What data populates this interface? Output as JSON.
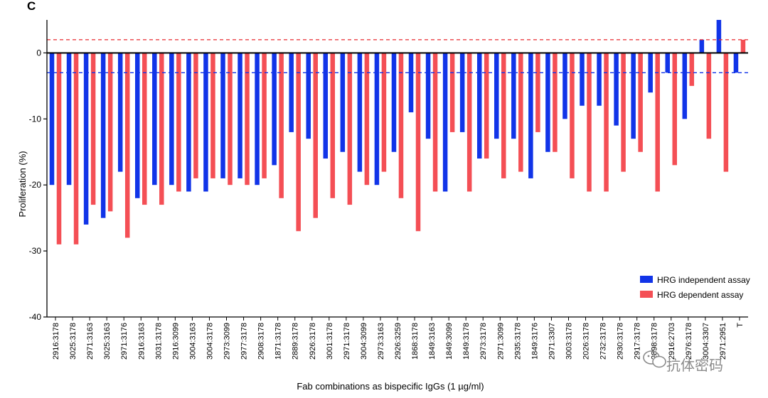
{
  "panel_label": "C",
  "watermark": {
    "text": "抗体密码",
    "icon": "wechat-icon"
  },
  "colors": {
    "independent": "#1134e8",
    "dependent": "#f44f55",
    "upper_threshold": "#e8282f",
    "lower_threshold": "#1134e8",
    "axis": "#000000"
  },
  "chart_data": {
    "type": "bar",
    "title": "",
    "xlabel": "Fab combinations as bispecific IgGs (1 µg/ml)",
    "ylabel": "Proliferation (%)",
    "ylim": [
      -40,
      5
    ],
    "yticks": [
      0,
      -10,
      -20,
      -30,
      -40
    ],
    "grid": false,
    "legend_position": "bottom-right",
    "categories": [
      "2916:3178",
      "3025:3178",
      "2971:3163",
      "3025:3163",
      "2971:3176",
      "2916:3163",
      "3031:3178",
      "2916:3099",
      "3004:3163",
      "3004:3178",
      "2973:3099",
      "2977:3178",
      "2908:3178",
      "1871:3178",
      "2889:3178",
      "2926:3178",
      "3001:3178",
      "2971:3178",
      "3004:3099",
      "2973:3163",
      "2926:3259",
      "1868:3178",
      "1849:3163",
      "1849:3099",
      "1849:3178",
      "2973:3178",
      "2971:3099",
      "2935:3178",
      "1849:3176",
      "2971:3307",
      "3003:3178",
      "2026:3178",
      "2732:3178",
      "2930:3178",
      "2917:3178",
      "2898:3178",
      "2916:2703",
      "2976:3178",
      "3004:3307",
      "2971:2951",
      "T"
    ],
    "series": [
      {
        "name": "HRG independent assay",
        "values": [
          -20,
          -20,
          -26,
          -25,
          -18,
          -22,
          -20,
          -20,
          -21,
          -21,
          -19,
          -19,
          -20,
          -17,
          -12,
          -13,
          -16,
          -15,
          -18,
          -20,
          -15,
          -9,
          -13,
          -21,
          -12,
          -16,
          -13,
          -13,
          -19,
          -15,
          -10,
          -8,
          -8,
          -11,
          -13,
          -6,
          -3,
          -10,
          2,
          5,
          -3
        ]
      },
      {
        "name": "HRG dependent assay",
        "values": [
          -29,
          -29,
          -23,
          -24,
          -28,
          -23,
          -23,
          -21,
          -19,
          -19,
          -20,
          -20,
          -19,
          -22,
          -27,
          -25,
          -22,
          -23,
          -20,
          -18,
          -22,
          -27,
          -21,
          -12,
          -21,
          -16,
          -19,
          -18,
          -12,
          -15,
          -19,
          -21,
          -21,
          -18,
          -15,
          -21,
          -17,
          -5,
          -13,
          -18,
          2
        ]
      }
    ],
    "reference_lines": [
      {
        "value": 2,
        "style": "dashed",
        "color": "#e8282f"
      },
      {
        "value": -3,
        "style": "dashed",
        "color": "#1134e8"
      }
    ]
  }
}
